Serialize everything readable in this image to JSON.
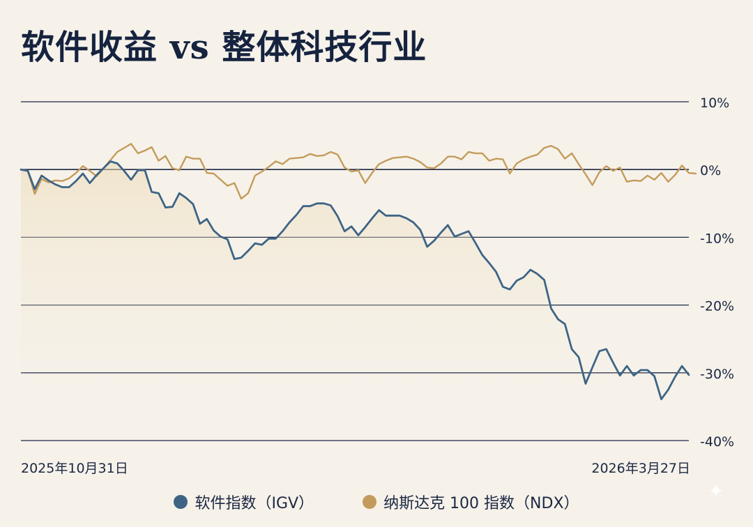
{
  "chart_data": {
    "type": "line",
    "title": "软件收益 vs 整体科技行业",
    "xlabel": "",
    "ylabel": "",
    "ylim": [
      -40,
      10
    ],
    "y_ticks": [
      10,
      0,
      -10,
      -20,
      -30,
      -40
    ],
    "y_tick_labels": [
      "10%",
      "0%",
      "-10%",
      "-20%",
      "-30%",
      "-40%"
    ],
    "x_start_label": "2025年10月31日",
    "x_end_label": "2026年3月27日",
    "grid": true,
    "legend_position": "bottom-center",
    "series": [
      {
        "name": "软件指数（IGV）",
        "color": "#3d6485",
        "values": [
          0,
          -0.2,
          -2.9,
          -0.9,
          -1.6,
          -2.2,
          -2.6,
          -2.6,
          -1.7,
          -0.6,
          -2.0,
          -0.8,
          0.2,
          1.2,
          0.9,
          -0.2,
          -1.5,
          -0.1,
          -0.1,
          -3.3,
          -3.5,
          -5.6,
          -5.5,
          -3.5,
          -4.2,
          -5.1,
          -8.0,
          -7.3,
          -9.0,
          -9.9,
          -10.3,
          -13.2,
          -13.0,
          -12.0,
          -10.9,
          -11.1,
          -10.2,
          -10.2,
          -9.1,
          -7.8,
          -6.7,
          -5.4,
          -5.4,
          -5.0,
          -5.0,
          -5.3,
          -6.9,
          -9.1,
          -8.4,
          -9.7,
          -8.5,
          -7.2,
          -6.0,
          -6.8,
          -6.8,
          -6.8,
          -7.2,
          -7.8,
          -8.9,
          -11.4,
          -10.5,
          -9.3,
          -8.2,
          -9.9,
          -9.5,
          -9.1,
          -10.8,
          -12.6,
          -13.8,
          -15.1,
          -17.3,
          -17.7,
          -16.4,
          -15.9,
          -14.8,
          -15.4,
          -16.3,
          -20.5,
          -22.1,
          -22.8,
          -26.5,
          -27.7,
          -31.6,
          -29.2,
          -26.8,
          -26.5,
          -28.5,
          -30.4,
          -29.0,
          -30.4,
          -29.6,
          -29.6,
          -30.5,
          -33.9,
          -32.5,
          -30.6,
          -29.0,
          -30.3
        ]
      },
      {
        "name": "纳斯达克 100 指数（NDX）",
        "color": "#c49b5c",
        "values": [
          0,
          -0.2,
          -3.6,
          -1.4,
          -1.9,
          -1.6,
          -1.7,
          -1.3,
          -0.5,
          0.5,
          -0.2,
          -1.0,
          0.2,
          1.4,
          2.6,
          3.2,
          3.8,
          2.4,
          2.8,
          3.3,
          1.3,
          2.0,
          0.2,
          -0.1,
          1.9,
          1.6,
          1.6,
          -0.5,
          -0.6,
          -1.5,
          -2.4,
          -2.0,
          -4.3,
          -3.5,
          -0.9,
          -0.3,
          0.4,
          1.2,
          0.8,
          1.6,
          1.7,
          1.8,
          2.3,
          2.0,
          2.1,
          2.6,
          2.2,
          0.3,
          -0.3,
          -0.1,
          -2.0,
          -0.5,
          0.8,
          1.3,
          1.7,
          1.8,
          1.9,
          1.6,
          1.1,
          0.3,
          0.2,
          0.9,
          1.9,
          1.9,
          1.5,
          2.6,
          2.4,
          2.4,
          1.3,
          1.6,
          1.5,
          -0.6,
          0.9,
          1.5,
          1.9,
          2.2,
          3.2,
          3.5,
          3.0,
          1.6,
          2.4,
          0.8,
          -0.7,
          -2.3,
          -0.4,
          0.5,
          -0.2,
          0.3,
          -1.8,
          -1.6,
          -1.7,
          -0.9,
          -1.5,
          -0.5,
          -1.8,
          -0.8,
          0.6,
          -0.5,
          -0.6
        ]
      }
    ]
  }
}
